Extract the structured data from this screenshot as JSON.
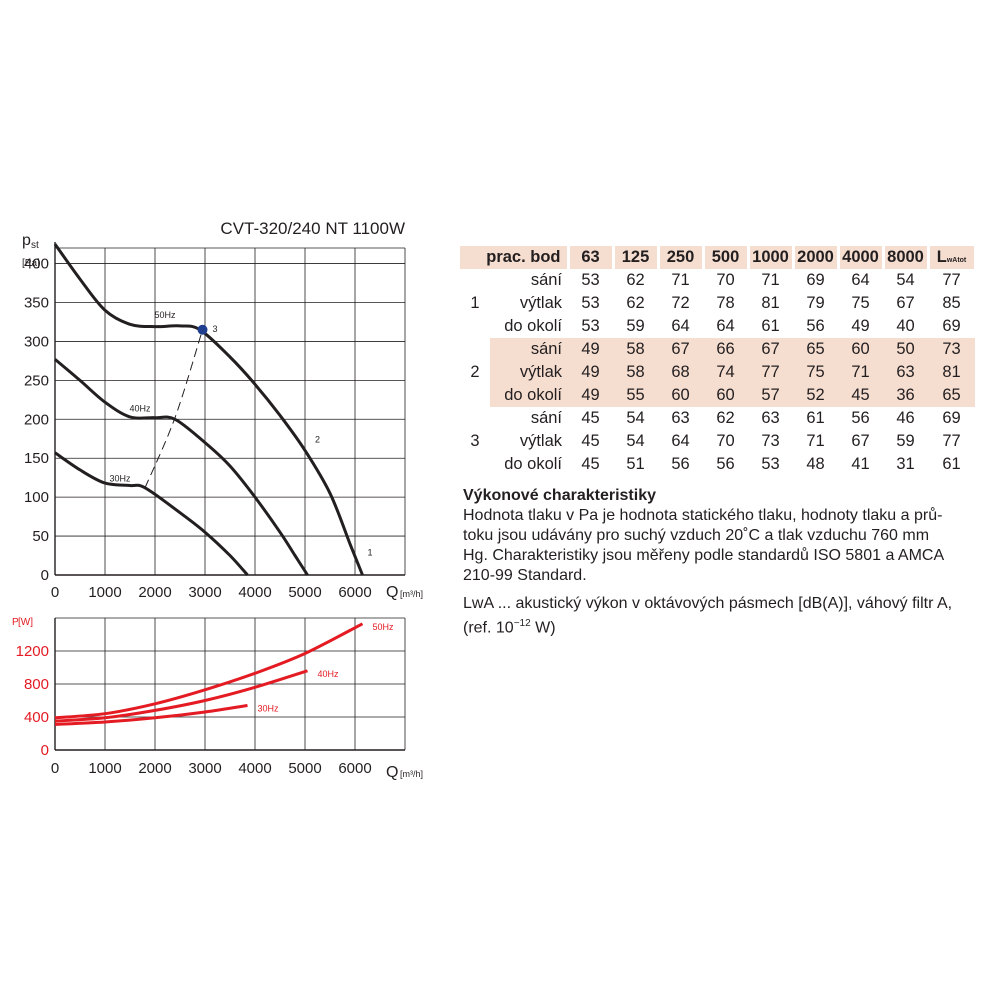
{
  "chart_data": [
    {
      "type": "line",
      "title": "CVT-320/240 NT 1100W",
      "ylabel_main": "p",
      "ylabel_sub": "st",
      "yunit": "[Pa]",
      "xlabel": "Q",
      "xunit": "[m³/h]",
      "xlim": [
        0,
        7000
      ],
      "ylim": [
        0,
        420
      ],
      "xticks": [
        0,
        1000,
        2000,
        3000,
        4000,
        5000,
        6000
      ],
      "yticks": [
        0,
        50,
        100,
        150,
        200,
        250,
        300,
        350,
        400
      ],
      "grid": true,
      "series": [
        {
          "name": "50Hz",
          "x": [
            0,
            500,
            1000,
            1500,
            2000,
            2500,
            2900,
            3500,
            4000,
            4500,
            5000,
            5500,
            5900,
            6150
          ],
          "y": [
            425,
            380,
            340,
            322,
            319,
            320,
            315,
            280,
            245,
            205,
            160,
            105,
            40,
            0
          ]
        },
        {
          "name": "40Hz",
          "x": [
            0,
            500,
            1000,
            1500,
            2000,
            2400,
            3000,
            3500,
            4000,
            4500,
            4800,
            5050
          ],
          "y": [
            277,
            250,
            222,
            203,
            202,
            200,
            170,
            140,
            100,
            55,
            25,
            0
          ]
        },
        {
          "name": "30Hz",
          "x": [
            0,
            500,
            1000,
            1500,
            1800,
            2500,
            3000,
            3500,
            3850
          ],
          "y": [
            157,
            135,
            118,
            115,
            112,
            80,
            55,
            25,
            0
          ]
        }
      ],
      "operating_point_line": {
        "x": [
          1800,
          2400,
          2950
        ],
        "y": [
          112,
          202,
          315
        ]
      },
      "operating_point_marker": {
        "x": 2950,
        "y": 315,
        "label": "3"
      },
      "curve_labels": [
        {
          "text": "50Hz",
          "x": 2200,
          "y": 330
        },
        {
          "text": "40Hz",
          "x": 1700,
          "y": 210
        },
        {
          "text": "30Hz",
          "x": 1300,
          "y": 120
        },
        {
          "text": "2",
          "x": 5250,
          "y": 170
        },
        {
          "text": "1",
          "x": 6300,
          "y": 25
        }
      ]
    },
    {
      "type": "line",
      "ylabel_main": "P",
      "yunit": "[W]",
      "xlabel": "Q",
      "xunit": "[m³/h]",
      "xlim": [
        0,
        7000
      ],
      "ylim": [
        0,
        1600
      ],
      "xticks": [
        0,
        1000,
        2000,
        3000,
        4000,
        5000,
        6000
      ],
      "yticks": [
        0,
        400,
        800,
        1200
      ],
      "grid": true,
      "series": [
        {
          "name": "50Hz",
          "x": [
            0,
            1000,
            2000,
            3000,
            4000,
            5000,
            6150
          ],
          "y": [
            390,
            440,
            560,
            730,
            930,
            1170,
            1530
          ]
        },
        {
          "name": "40Hz",
          "x": [
            0,
            1000,
            2000,
            3000,
            4000,
            5050
          ],
          "y": [
            350,
            390,
            480,
            600,
            760,
            960
          ]
        },
        {
          "name": "30Hz",
          "x": [
            0,
            1000,
            2000,
            3000,
            3850
          ],
          "y": [
            310,
            340,
            390,
            460,
            540
          ]
        }
      ]
    }
  ],
  "table": {
    "header": {
      "label": "prac. bod",
      "bands": [
        "63",
        "125",
        "250",
        "500",
        "1000",
        "2000",
        "4000",
        "8000"
      ],
      "total": "L",
      "total_sub": "wAtot"
    },
    "groups": [
      {
        "point": "1",
        "shaded": false,
        "rows": [
          {
            "label": "sání",
            "values": [
              "53",
              "62",
              "71",
              "70",
              "71",
              "69",
              "64",
              "54",
              "77"
            ]
          },
          {
            "label": "výtlak",
            "values": [
              "53",
              "62",
              "72",
              "78",
              "81",
              "79",
              "75",
              "67",
              "85"
            ]
          },
          {
            "label": "do okolí",
            "values": [
              "53",
              "59",
              "64",
              "64",
              "61",
              "56",
              "49",
              "40",
              "69"
            ]
          }
        ]
      },
      {
        "point": "2",
        "shaded": true,
        "rows": [
          {
            "label": "sání",
            "values": [
              "49",
              "58",
              "67",
              "66",
              "67",
              "65",
              "60",
              "50",
              "73"
            ]
          },
          {
            "label": "výtlak",
            "values": [
              "49",
              "58",
              "68",
              "74",
              "77",
              "75",
              "71",
              "63",
              "81"
            ]
          },
          {
            "label": "do okolí",
            "values": [
              "49",
              "55",
              "60",
              "60",
              "57",
              "52",
              "45",
              "36",
              "65"
            ]
          }
        ]
      },
      {
        "point": "3",
        "shaded": false,
        "rows": [
          {
            "label": "sání",
            "values": [
              "45",
              "54",
              "63",
              "62",
              "63",
              "61",
              "56",
              "46",
              "69"
            ]
          },
          {
            "label": "výtlak",
            "values": [
              "45",
              "54",
              "64",
              "70",
              "73",
              "71",
              "67",
              "59",
              "77"
            ]
          },
          {
            "label": "do okolí",
            "values": [
              "45",
              "51",
              "56",
              "56",
              "53",
              "48",
              "41",
              "31",
              "61"
            ]
          }
        ]
      }
    ]
  },
  "notes": {
    "heading": "Výkonové charakteristiky",
    "lines1": [
      "Hodnota tlaku v Pa je hodnota statického tlaku, hodnoty tlaku a prů-",
      "toku jsou udávány pro suchý vzduch 20˚C a tlak vzduchu 760 mm",
      "Hg. Charakteristiky jsou měřeny podle standardů ISO 5801 a AMCA",
      "210-99 Standard."
    ],
    "lines2_a": "LwA ... akustický výkon v oktávových pásmech [dB(A)], váhový filtr A,",
    "lines2_b": "(ref. 10",
    "lines2_sup": "−12",
    "lines2_c": " W)"
  },
  "colors": {
    "pressure_curve": "#231f20",
    "power_curve": "#e41b23",
    "power_axis": "#e41b23",
    "marker": "#1f3e8f",
    "band": "#f5ddd0",
    "grid": "#231f20"
  }
}
